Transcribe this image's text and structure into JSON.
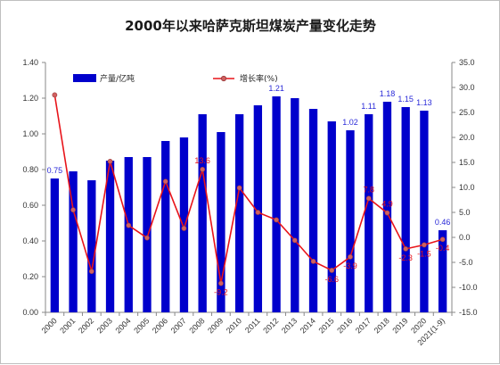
{
  "chart_data": {
    "type": "bar+line",
    "title": "2000年以来哈萨克斯坦煤炭产量变化走势",
    "categories": [
      "2000",
      "2001",
      "2002",
      "2003",
      "2004",
      "2005",
      "2006",
      "2007",
      "2008",
      "2009",
      "2010",
      "2011",
      "2012",
      "2013",
      "2014",
      "2015",
      "2016",
      "2017",
      "2018",
      "2019",
      "2020",
      "2021(1-9)"
    ],
    "series": [
      {
        "name": "产量/亿吨",
        "type": "bar",
        "axis": "left",
        "color": "#0000cc",
        "values": [
          0.75,
          0.79,
          0.74,
          0.85,
          0.87,
          0.87,
          0.96,
          0.98,
          1.11,
          1.01,
          1.11,
          1.16,
          1.21,
          1.2,
          1.14,
          1.07,
          1.02,
          1.11,
          1.18,
          1.15,
          1.13,
          0.46
        ],
        "labels": [
          "0.75",
          "",
          "",
          "",
          "",
          "",
          "",
          "",
          "",
          "",
          "",
          "",
          "1.21",
          "",
          "",
          "",
          "1.02",
          "1.11",
          "1.18",
          "1.15",
          "1.13",
          "0.46"
        ]
      },
      {
        "name": "增长率(%)",
        "type": "line",
        "axis": "right",
        "color": "#e8141a",
        "values": [
          28.5,
          5.5,
          -6.8,
          15.2,
          2.4,
          -0.1,
          11.2,
          1.8,
          13.6,
          -9.2,
          9.9,
          5.0,
          3.5,
          -0.6,
          -4.8,
          -6.6,
          -3.9,
          7.8,
          4.9,
          -2.3,
          -1.5,
          -0.4
        ],
        "labels": [
          "",
          "",
          "",
          "",
          "",
          "",
          "",
          "",
          "13.6",
          "-9.2",
          "",
          "",
          "",
          "",
          "",
          "-6.6",
          "-3.9",
          "7.8",
          "4.9",
          "-2.3",
          "-1.5",
          "-0.4"
        ]
      }
    ],
    "left_axis": {
      "min": 0,
      "max": 1.4,
      "step": 0.2,
      "ticks": [
        "0.00",
        "0.20",
        "0.40",
        "0.60",
        "0.80",
        "1.00",
        "1.20",
        "1.40"
      ]
    },
    "right_axis": {
      "min": -15,
      "max": 35,
      "step": 5,
      "ticks": [
        "-15.0",
        "-10.0",
        "-5.0",
        "0.0",
        "5.0",
        "10.0",
        "15.0",
        "20.0",
        "25.0",
        "30.0",
        "35.0"
      ]
    },
    "grid": false,
    "legend": "top-left"
  }
}
